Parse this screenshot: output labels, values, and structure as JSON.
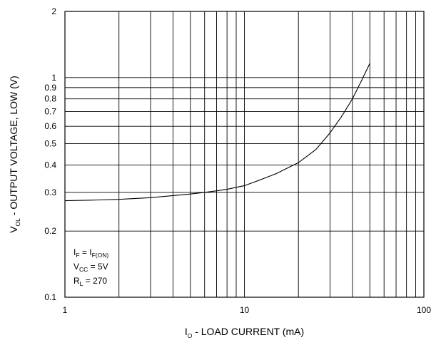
{
  "chart_data": {
    "type": "line",
    "x_scale": "log",
    "y_scale": "log",
    "xlim": [
      1,
      100
    ],
    "ylim": [
      0.1,
      2
    ],
    "grid": true,
    "xlabel": {
      "main": "I",
      "sub": "O",
      "rest": " - LOAD CURRENT (mA)"
    },
    "ylabel": {
      "main": "V",
      "sub": "OL",
      "rest": " - OUTPUT VOLTAGE,  LOW (V)"
    },
    "x_ticks": [
      {
        "value": 1,
        "label": "1"
      },
      {
        "value": 10,
        "label": "10"
      },
      {
        "value": 100,
        "label": "100"
      }
    ],
    "y_ticks": [
      {
        "value": 0.1,
        "label": "0.1"
      },
      {
        "value": 0.2,
        "label": "0.2"
      },
      {
        "value": 0.3,
        "label": "0.3"
      },
      {
        "value": 0.4,
        "label": "0.4"
      },
      {
        "value": 0.5,
        "label": "0.5"
      },
      {
        "value": 0.6,
        "label": "0.6"
      },
      {
        "value": 0.7,
        "label": "0.7"
      },
      {
        "value": 0.8,
        "label": "0.8"
      },
      {
        "value": 0.9,
        "label": "0.9"
      },
      {
        "value": 1,
        "label": "1"
      },
      {
        "value": 2,
        "label": "2"
      }
    ],
    "series": [
      {
        "x": [
          1,
          1.5,
          2,
          3,
          4,
          5,
          6,
          7,
          8,
          10,
          12,
          15,
          20,
          25,
          30,
          35,
          40,
          45,
          50
        ],
        "y": [
          0.275,
          0.277,
          0.279,
          0.284,
          0.29,
          0.295,
          0.3,
          0.305,
          0.31,
          0.322,
          0.34,
          0.365,
          0.41,
          0.47,
          0.56,
          0.67,
          0.8,
          0.97,
          1.16
        ]
      }
    ],
    "annotation": {
      "lines": [
        {
          "main": "I",
          "sub": "F",
          "mid": " = I",
          "sub2": "F(ON)"
        },
        {
          "main": "V",
          "sub": "CC",
          "mid": " = 5V",
          "sub2": ""
        },
        {
          "main": "R",
          "sub": "L",
          "mid": " = 270",
          "sub2": ""
        }
      ]
    }
  }
}
